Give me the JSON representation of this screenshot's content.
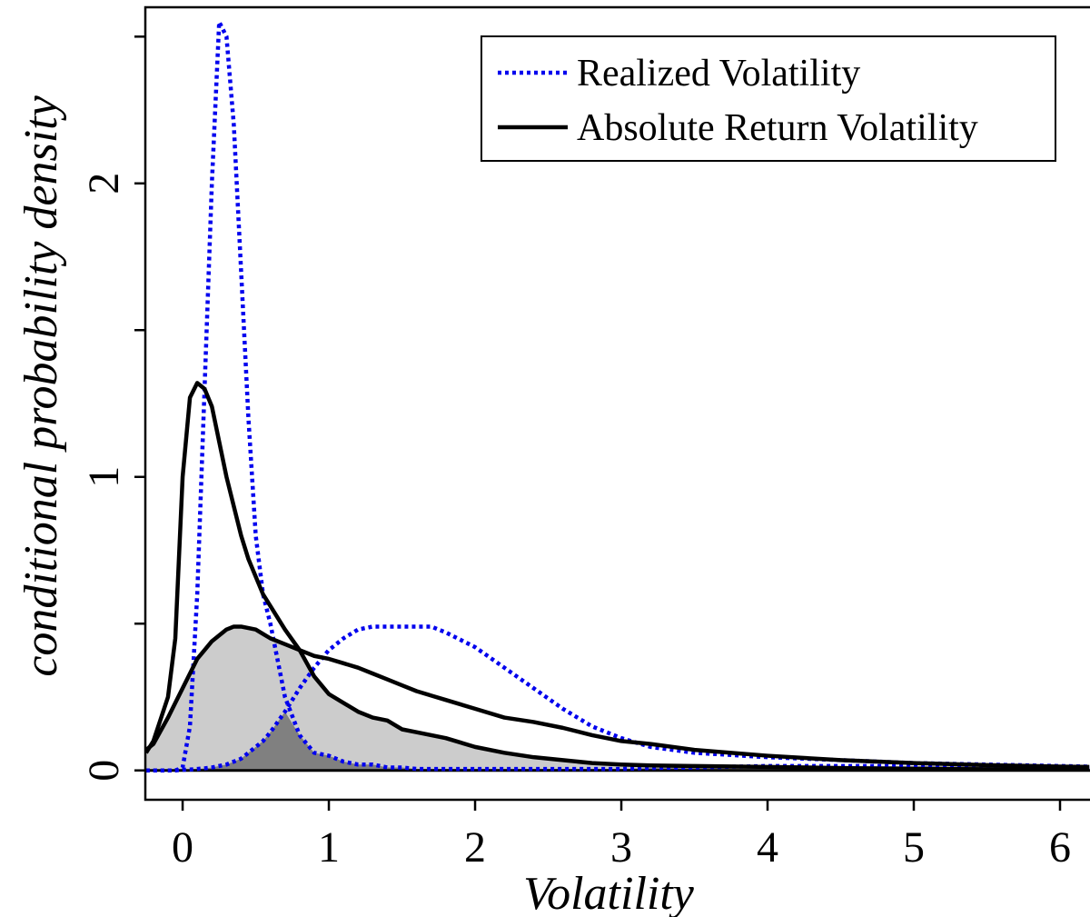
{
  "chart_data": {
    "type": "line",
    "xlabel": "Volatility",
    "ylabel": "conditional probability density",
    "x": [
      -0.25,
      -0.2,
      -0.1,
      -0.05,
      0,
      0.05,
      0.1,
      0.15,
      0.2,
      0.25,
      0.3,
      0.35,
      0.4,
      0.45,
      0.5,
      0.55,
      0.6,
      0.7,
      0.8,
      0.9,
      1.0,
      1.1,
      1.2,
      1.3,
      1.4,
      1.5,
      1.6,
      1.7,
      1.8,
      2.0,
      2.2,
      2.4,
      2.6,
      2.8,
      3.0,
      3.2,
      3.5,
      4.0,
      4.5,
      5.0,
      5.5,
      6.0,
      6.2
    ],
    "series": [
      {
        "color": "#0000ee",
        "dash": "dotted",
        "values": [
          0,
          0,
          0,
          0,
          0.01,
          0.15,
          0.6,
          1.3,
          2.0,
          2.55,
          2.5,
          2.2,
          1.7,
          1.2,
          0.8,
          0.6,
          0.5,
          0.25,
          0.12,
          0.06,
          0.05,
          0.03,
          0.02,
          0.02,
          0.01,
          0.01,
          0.005,
          0.005,
          0.005,
          0.005,
          0.005,
          0.005,
          0.005,
          0.005,
          0.005,
          0.008,
          0.01,
          0.015,
          0.015,
          0.015,
          0.012,
          0.01,
          0.01
        ]
      },
      {
        "color": "#0000ee",
        "dash": "dotted",
        "values": [
          0,
          0,
          0,
          0,
          0.002,
          0.003,
          0.005,
          0.007,
          0.01,
          0.015,
          0.02,
          0.03,
          0.04,
          0.06,
          0.08,
          0.1,
          0.13,
          0.2,
          0.28,
          0.35,
          0.41,
          0.45,
          0.48,
          0.49,
          0.49,
          0.49,
          0.49,
          0.49,
          0.47,
          0.42,
          0.35,
          0.28,
          0.21,
          0.15,
          0.11,
          0.08,
          0.06,
          0.045,
          0.035,
          0.025,
          0.02,
          0.015,
          0.013
        ]
      },
      {
        "color": "#000000",
        "dash": "solid",
        "values": [
          0.06,
          0.1,
          0.25,
          0.45,
          1.0,
          1.27,
          1.32,
          1.3,
          1.24,
          1.12,
          1.0,
          0.9,
          0.8,
          0.72,
          0.66,
          0.6,
          0.56,
          0.48,
          0.41,
          0.32,
          0.26,
          0.23,
          0.2,
          0.18,
          0.17,
          0.14,
          0.13,
          0.12,
          0.11,
          0.08,
          0.06,
          0.045,
          0.035,
          0.025,
          0.02,
          0.017,
          0.015,
          0.012,
          0.008,
          0.005,
          0.004,
          0.003,
          0.003
        ]
      },
      {
        "color": "#000000",
        "dash": "solid",
        "values": [
          0.07,
          0.09,
          0.18,
          0.23,
          0.28,
          0.33,
          0.38,
          0.41,
          0.44,
          0.46,
          0.48,
          0.49,
          0.49,
          0.485,
          0.48,
          0.465,
          0.45,
          0.43,
          0.41,
          0.39,
          0.38,
          0.365,
          0.35,
          0.33,
          0.31,
          0.29,
          0.27,
          0.255,
          0.24,
          0.21,
          0.18,
          0.165,
          0.145,
          0.12,
          0.1,
          0.09,
          0.07,
          0.05,
          0.035,
          0.025,
          0.018,
          0.013,
          0.012
        ]
      }
    ],
    "overlap_fills": [
      {
        "series": [
          2,
          3
        ],
        "color": "#cccccc"
      },
      {
        "series": [
          0,
          1
        ],
        "color": "#808080"
      }
    ],
    "zero_line": true,
    "legend": [
      {
        "name": "Realized Volatility",
        "color": "#0000ee",
        "dash": "dotted"
      },
      {
        "name": "Absolute Return Volatility",
        "color": "#000000",
        "dash": "solid"
      }
    ],
    "legend_position": "top-right",
    "xlim": [
      -0.255,
      6.205
    ],
    "ylim": [
      -0.1,
      2.6
    ],
    "xticks": [
      0,
      1,
      2,
      3,
      4,
      5,
      6
    ],
    "yticks": [
      0,
      1,
      2
    ],
    "yticks_unlabeled": [
      0.5,
      1.5,
      2.5
    ]
  }
}
